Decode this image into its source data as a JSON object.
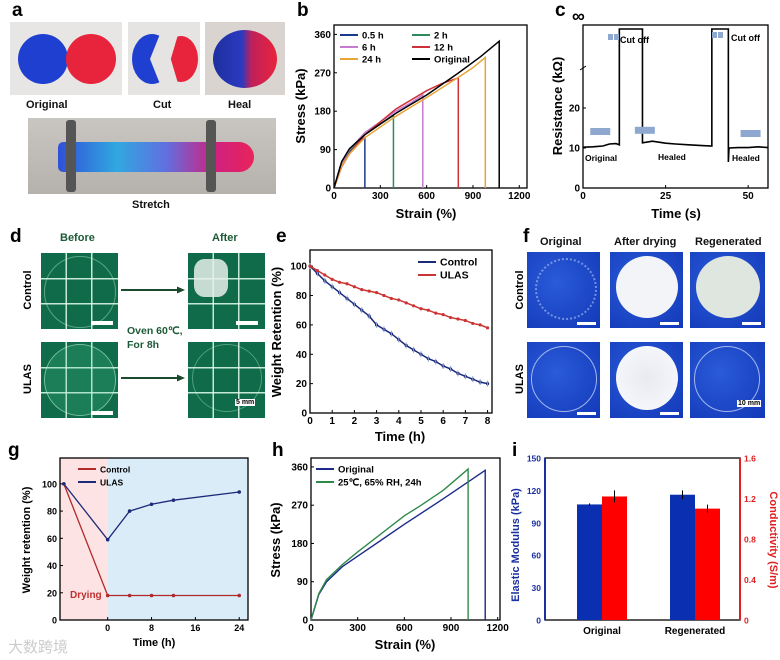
{
  "panel_letters": [
    "a",
    "b",
    "c",
    "d",
    "e",
    "f",
    "g",
    "h",
    "i"
  ],
  "panel_a": {
    "labels": [
      "Original",
      "Cut",
      "Heal"
    ],
    "stretch_label": "Stretch"
  },
  "panel_d": {
    "col_headers": [
      "Before",
      "After"
    ],
    "row_labels": [
      "Control",
      "ULAS"
    ],
    "condition_line1": "Oven 60℃,",
    "condition_line2": "For 8h",
    "scale_bar": "5 mm"
  },
  "panel_f": {
    "col_headers": [
      "Original",
      "After drying",
      "Regenerated"
    ],
    "row_labels": [
      "Control",
      "ULAS"
    ],
    "scale_bar": "10 mm"
  },
  "watermark": "大数跨境",
  "colors": {
    "blue": "#1f2f86",
    "red": "#d03030",
    "bar_blue": "#0a2fb0",
    "bar_red": "#ff0000",
    "pink_bg": "#fde3e3",
    "blue_bg": "#d9ecf8"
  },
  "chart_data": [
    {
      "id": "b",
      "type": "line",
      "xlabel": "Strain (%)",
      "ylabel": "Stress (kPa)",
      "xlim": [
        0,
        1250
      ],
      "ylim": [
        0,
        382
      ],
      "xticks": [
        0,
        300,
        600,
        900,
        1200
      ],
      "yticks": [
        0,
        90,
        180,
        270,
        360
      ],
      "series": [
        {
          "name": "0.5 h",
          "color": "#1b3a8c",
          "points": [
            [
              0,
              0
            ],
            [
              40,
              50
            ],
            [
              100,
              85
            ],
            [
              160,
              108
            ],
            [
              200,
              118
            ]
          ]
        },
        {
          "name": "2 h",
          "color": "#2f8a5a",
          "points": [
            [
              0,
              0
            ],
            [
              50,
              60
            ],
            [
              100,
              88
            ],
            [
              200,
              125
            ],
            [
              300,
              150
            ],
            [
              385,
              170
            ]
          ]
        },
        {
          "name": "6 h",
          "color": "#c77bd0",
          "points": [
            [
              0,
              0
            ],
            [
              50,
              58
            ],
            [
              100,
              90
            ],
            [
              200,
              130
            ],
            [
              400,
              180
            ],
            [
              500,
              200
            ],
            [
              575,
              218
            ]
          ]
        },
        {
          "name": "12 h",
          "color": "#d0303a",
          "points": [
            [
              0,
              0
            ],
            [
              50,
              50
            ],
            [
              100,
              80
            ],
            [
              200,
              125
            ],
            [
              400,
              185
            ],
            [
              600,
              228
            ],
            [
              700,
              245
            ],
            [
              805,
              258
            ]
          ]
        },
        {
          "name": "24 h",
          "color": "#e8a53a",
          "points": [
            [
              0,
              0
            ],
            [
              50,
              52
            ],
            [
              100,
              80
            ],
            [
              200,
              118
            ],
            [
              400,
              168
            ],
            [
              600,
              212
            ],
            [
              800,
              258
            ],
            [
              900,
              282
            ],
            [
              980,
              306
            ]
          ]
        },
        {
          "name": "Original",
          "color": "#000000",
          "points": [
            [
              0,
              0
            ],
            [
              50,
              62
            ],
            [
              100,
              92
            ],
            [
              200,
              125
            ],
            [
              400,
              175
            ],
            [
              600,
              218
            ],
            [
              800,
              268
            ],
            [
              950,
              308
            ],
            [
              1070,
              344
            ]
          ]
        }
      ]
    },
    {
      "id": "c",
      "type": "line",
      "xlabel": "Time (s)",
      "ylabel": "Resistance (kΩ)",
      "xlim": [
        0,
        56
      ],
      "ylim": [
        0,
        25
      ],
      "xticks": [
        0,
        25,
        50
      ],
      "yticks": [
        0,
        10,
        20
      ],
      "infinity_label": "∞",
      "annotations": [
        "Cut off",
        "Cut off",
        "Original",
        "Healed",
        "Healed"
      ],
      "segments": [
        {
          "state": "finite",
          "points": [
            [
              0,
              10.2
            ],
            [
              3,
              10.3
            ],
            [
              6,
              10.5
            ],
            [
              8,
              11
            ],
            [
              10,
              11.1
            ],
            [
              11,
              10.8
            ]
          ]
        },
        {
          "state": "infinite",
          "from": 11,
          "to": 18
        },
        {
          "state": "finite",
          "points": [
            [
              18,
              11.3
            ],
            [
              21,
              11.7
            ],
            [
              25,
              11.2
            ],
            [
              28,
              11
            ],
            [
              32,
              10.8
            ],
            [
              36,
              10.6
            ],
            [
              39,
              10.5
            ]
          ]
        },
        {
          "state": "infinite",
          "from": 39,
          "to": 44
        },
        {
          "state": "finite",
          "points": [
            [
              44,
              6.5
            ],
            [
              44.2,
              10
            ],
            [
              47,
              10.1
            ],
            [
              50,
              10.1
            ],
            [
              53,
              10.3
            ],
            [
              56,
              10.1
            ]
          ]
        }
      ]
    },
    {
      "id": "e",
      "type": "line",
      "xlabel": "Time (h)",
      "ylabel": "Weight Retention (%)",
      "xlim": [
        0,
        8.2
      ],
      "ylim": [
        0,
        111
      ],
      "xticks": [
        0,
        1,
        2,
        3,
        4,
        5,
        6,
        7,
        8
      ],
      "yticks": [
        0,
        20,
        40,
        60,
        80,
        100
      ],
      "x_step": 0.3333,
      "series": [
        {
          "name": "Control",
          "color": "#1c2a7a",
          "values": [
            100,
            95,
            90,
            86,
            82,
            78,
            74,
            70,
            66,
            60,
            57,
            54,
            50,
            46,
            43,
            40,
            37,
            35,
            32,
            30,
            27,
            25,
            23,
            21,
            20
          ]
        },
        {
          "name": "ULAS",
          "color": "#cc3333",
          "values": [
            100,
            97,
            94,
            91,
            89,
            88,
            86,
            84,
            83,
            82,
            80,
            78,
            77,
            75,
            73,
            71,
            70,
            68,
            67,
            65,
            64,
            63,
            61,
            60,
            58
          ]
        }
      ]
    },
    {
      "id": "g",
      "type": "line",
      "xlabel": "Time (h)",
      "ylabel": "Weight retention (%)",
      "xlim": [
        -8.7,
        25.6
      ],
      "ylim": [
        0,
        119
      ],
      "xticks": [
        0,
        8,
        16,
        24
      ],
      "yticks": [
        0,
        20,
        40,
        60,
        80,
        100
      ],
      "region_label": "Drying",
      "series": [
        {
          "name": "Control",
          "color": "#b02a2a",
          "points": [
            [
              -8,
              100
            ],
            [
              0,
              18
            ],
            [
              4,
              18
            ],
            [
              8,
              18
            ],
            [
              12,
              18
            ],
            [
              24,
              18
            ]
          ]
        },
        {
          "name": "ULAS",
          "color": "#1c2a7a",
          "points": [
            [
              -8,
              100
            ],
            [
              0,
              59
            ],
            [
              4,
              80
            ],
            [
              8,
              85
            ],
            [
              12,
              88
            ],
            [
              24,
              94
            ]
          ]
        }
      ]
    },
    {
      "id": "h",
      "type": "line",
      "xlabel": "Strain (%)",
      "ylabel": "Stress (kPa)",
      "xlim": [
        0,
        1215
      ],
      "ylim": [
        0,
        381
      ],
      "xticks": [
        0,
        300,
        600,
        900,
        1200
      ],
      "yticks": [
        0,
        90,
        180,
        270,
        360
      ],
      "series": [
        {
          "name": "Original",
          "color": "#1c2a8a",
          "points": [
            [
              0,
              0
            ],
            [
              50,
              60
            ],
            [
              100,
              90
            ],
            [
              200,
              125
            ],
            [
              300,
              150
            ],
            [
              600,
              225
            ],
            [
              850,
              285
            ],
            [
              1120,
              352
            ],
            [
              1120,
              0
            ]
          ]
        },
        {
          "name": "25℃, 65% RH, 24h",
          "color": "#2f8a4a",
          "points": [
            [
              0,
              0
            ],
            [
              50,
              62
            ],
            [
              100,
              95
            ],
            [
              200,
              130
            ],
            [
              300,
              160
            ],
            [
              600,
              245
            ],
            [
              700,
              268
            ],
            [
              850,
              305
            ],
            [
              1010,
              355
            ],
            [
              1010,
              0
            ]
          ]
        }
      ]
    },
    {
      "id": "i",
      "type": "bar",
      "categories": [
        "Original",
        "Regenerated"
      ],
      "ylabel": "Elastic Modulus (kPa)",
      "ylabel_right": "Conductivity (S/m)",
      "ylim": [
        0,
        150
      ],
      "ylim_right": [
        0,
        1.6
      ],
      "yticks": [
        0,
        30,
        60,
        90,
        120,
        150
      ],
      "yticks_right": [
        0,
        0.4,
        0.8,
        1.2,
        1.6
      ],
      "series": [
        {
          "name": "Elastic Modulus",
          "axis": "left",
          "color": "#0a2fb0",
          "values": [
            107,
            116
          ],
          "errors": [
            1,
            4
          ]
        },
        {
          "name": "Conductivity",
          "axis": "right",
          "color": "#ff0000",
          "values": [
            1.22,
            1.1
          ],
          "errors": [
            0.06,
            0.04
          ]
        }
      ]
    }
  ]
}
